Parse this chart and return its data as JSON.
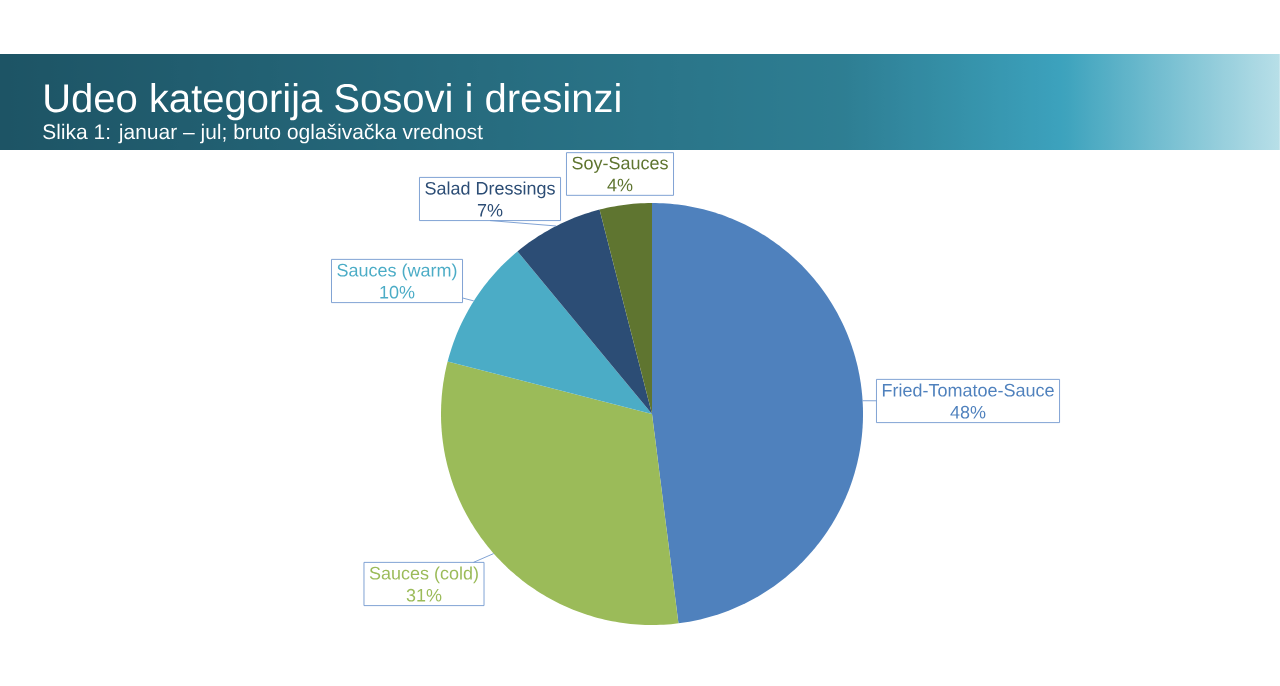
{
  "chart_data": {
    "type": "pie",
    "title": "Udeo kategorija Sosovi i dresinzi",
    "subtitle": "Slika 1: januar – jul; bruto oglašivačka vrednost",
    "categories": [
      "Fried-Tomatoe-Sauce",
      "Sauces (cold)",
      "Sauces (warm)",
      "Salad Dressings",
      "Soy-Sauces"
    ],
    "values": [
      48,
      31,
      10,
      7,
      4
    ],
    "colors": [
      "#4f81bd",
      "#9bbb59",
      "#4bacc6",
      "#2c4d75",
      "#5f7530"
    ],
    "value_labels": [
      "48%",
      "31%",
      "10%",
      "7%",
      "4%"
    ]
  }
}
